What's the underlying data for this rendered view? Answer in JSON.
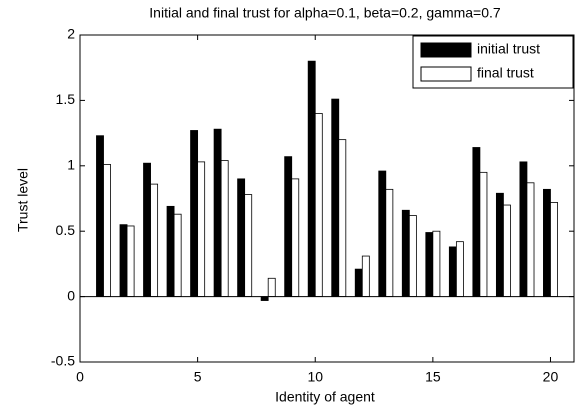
{
  "chart_data": {
    "type": "bar",
    "title": "Initial and final trust for alpha=0.1, beta=0.2, gamma=0.7",
    "x_label": "Identity of agent",
    "y_label": "Trust level",
    "x": [
      1,
      2,
      3,
      4,
      5,
      6,
      7,
      8,
      9,
      10,
      11,
      12,
      13,
      14,
      15,
      16,
      17,
      18,
      19,
      20
    ],
    "series": [
      {
        "name": "initial trust",
        "color": "#000000",
        "values": [
          1.23,
          0.55,
          1.02,
          0.69,
          1.27,
          1.28,
          0.9,
          -0.03,
          1.07,
          1.8,
          1.51,
          0.21,
          0.96,
          0.66,
          0.49,
          0.38,
          1.14,
          0.79,
          1.03,
          0.82
        ]
      },
      {
        "name": "final trust",
        "color": "#ffffff",
        "values": [
          1.01,
          0.54,
          0.86,
          0.63,
          1.03,
          1.04,
          0.78,
          0.14,
          0.9,
          1.4,
          1.2,
          0.31,
          0.82,
          0.62,
          0.5,
          0.42,
          0.95,
          0.7,
          0.87,
          0.72
        ]
      }
    ],
    "xlim": [
      0,
      21
    ],
    "xticks": [
      0,
      5,
      10,
      15,
      20
    ],
    "ylim": [
      -0.5,
      2
    ],
    "yticks": [
      -0.5,
      0,
      0.5,
      1,
      1.5,
      2
    ],
    "legend": "upper right"
  }
}
